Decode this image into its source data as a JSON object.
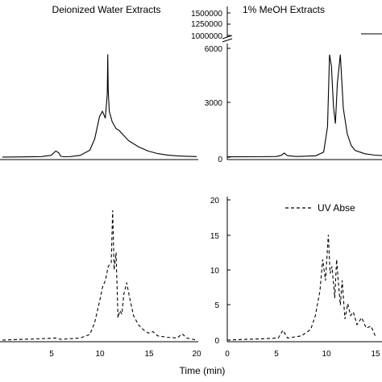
{
  "chart_data": [
    {
      "type": "line",
      "title": "Deionized Water Extracts",
      "panel": "top-left",
      "xlim": [
        0,
        20
      ],
      "ylim": [
        0,
        7000
      ],
      "series": [
        {
          "x": [
            0,
            2,
            4,
            5,
            5.5,
            5.8,
            6,
            6.3,
            7,
            8,
            9,
            9.5,
            10,
            10.3,
            10.6,
            10.8,
            10.85,
            10.9,
            11,
            11.3,
            11.7,
            12,
            12.5,
            13,
            14,
            15,
            16,
            17,
            18,
            19,
            20
          ],
          "y": [
            50,
            60,
            80,
            150,
            400,
            300,
            100,
            70,
            80,
            150,
            450,
            1100,
            2400,
            2700,
            2300,
            3700,
            6000,
            3900,
            2700,
            2100,
            1700,
            1600,
            1300,
            1000,
            650,
            400,
            250,
            170,
            120,
            100,
            80
          ]
        }
      ]
    },
    {
      "type": "line",
      "title": "1% MeOH Extracts",
      "panel": "top-right",
      "xlim": [
        0,
        20
      ],
      "ylim": [
        0,
        7000
      ],
      "y_break": "1000000",
      "upper_ticks": [
        "1500000",
        "1250000",
        "1000000"
      ],
      "yticks": [
        "0",
        "3000",
        "6000"
      ],
      "series": [
        {
          "x": [
            0,
            3,
            5,
            5.5,
            5.8,
            6.1,
            7,
            9,
            9.8,
            10.2,
            10.4,
            10.6,
            10.8,
            11,
            11.2,
            11.5,
            11.8,
            12.2,
            12.6,
            13,
            14,
            15,
            16
          ],
          "y": [
            20,
            25,
            40,
            110,
            250,
            90,
            40,
            80,
            300,
            1800,
            6100,
            5400,
            3000,
            2000,
            4400,
            6100,
            2900,
            1400,
            700,
            400,
            200,
            120,
            80
          ]
        }
      ]
    },
    {
      "type": "line",
      "panel": "bottom-left",
      "xlim": [
        0,
        20
      ],
      "ylim": [
        0,
        20
      ],
      "xticks": [
        "5",
        "10",
        "15",
        "20"
      ],
      "xlabel": "Time (min)",
      "series": [
        {
          "style": "dashed",
          "x": [
            0,
            2,
            4,
            5.5,
            6,
            8,
            9,
            9.5,
            10,
            10.3,
            10.6,
            10.9,
            11.2,
            11.35,
            11.5,
            11.7,
            11.9,
            12.1,
            12.3,
            12.5,
            12.8,
            13.1,
            13.5,
            14,
            14.5,
            15,
            15.5,
            16,
            17,
            18,
            18.5,
            19,
            20
          ],
          "y": [
            0,
            0.1,
            0.2,
            0.3,
            0.1,
            0.3,
            0.8,
            2.5,
            5.5,
            7.5,
            8.5,
            10.5,
            11,
            18.5,
            10,
            12.5,
            3.2,
            4.2,
            3.7,
            6.5,
            8.2,
            6,
            3.5,
            2.2,
            1.5,
            1,
            1.2,
            0.6,
            0.4,
            0.3,
            0.9,
            0.3,
            0
          ]
        }
      ]
    },
    {
      "type": "line",
      "panel": "bottom-right",
      "xlim": [
        0,
        16
      ],
      "ylim": [
        0,
        20
      ],
      "xticks": [
        "0",
        "5",
        "10",
        "15"
      ],
      "yticks": [
        "0",
        "5",
        "10",
        "15",
        "20"
      ],
      "series": [
        {
          "name": "UV Abse",
          "style": "dashed",
          "x": [
            0,
            2,
            4,
            5.5,
            6,
            6.5,
            8,
            9,
            9.5,
            10,
            10.3,
            10.6,
            10.9,
            11.1,
            11.3,
            11.6,
            11.8,
            12,
            12.2,
            12.4,
            12.7,
            13,
            13.3,
            13.6,
            14,
            14.5,
            15,
            15.5,
            16
          ],
          "y": [
            0,
            0.1,
            0.2,
            0.3,
            1.4,
            0.3,
            0.6,
            1.5,
            3.5,
            7,
            11.5,
            8.5,
            15,
            9.5,
            10.5,
            6,
            11.5,
            8,
            5,
            8.5,
            3,
            5.2,
            3.5,
            4,
            2.2,
            3.2,
            1.7,
            2,
            0.5
          ]
        }
      ]
    }
  ]
}
